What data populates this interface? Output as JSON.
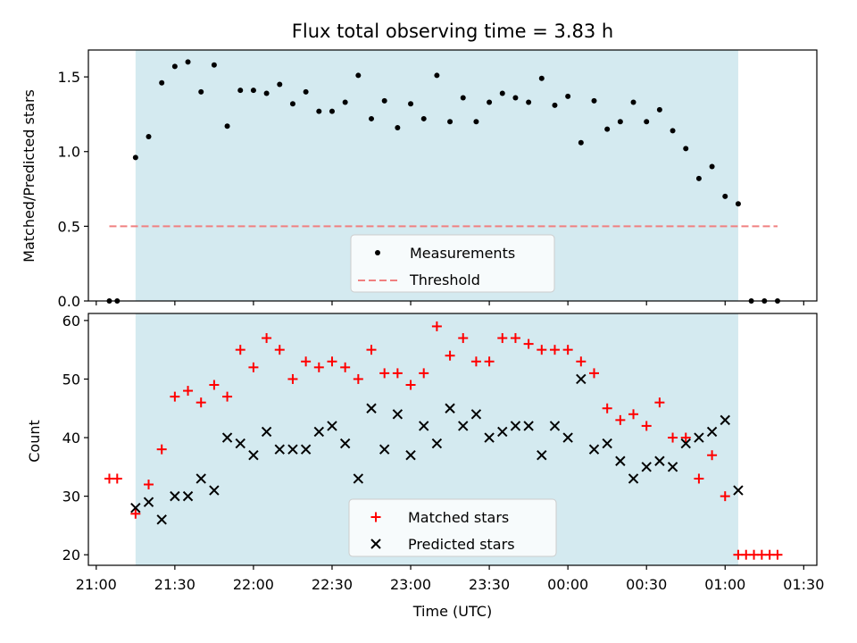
{
  "chart_data": [
    {
      "type": "scatter",
      "title": "Flux total observing time = 3.83 h",
      "xlabel": "",
      "ylabel": "Matched/Predicted stars",
      "ylim": [
        0,
        1.68
      ],
      "yticks": [
        "0.0",
        "0.5",
        "1.0",
        "1.5"
      ],
      "ytick_values": [
        0,
        0.5,
        1.0,
        1.5
      ],
      "observing_window": {
        "start": "21:15",
        "end": "01:05",
        "color": "#d4eaf0"
      },
      "threshold": {
        "name": "Threshold",
        "value": 0.5,
        "x_start": "21:05",
        "x_end": "01:20",
        "color": "#f08080"
      },
      "legend": {
        "position": "lower center",
        "entries": [
          "Measurements",
          "Threshold"
        ]
      },
      "series": [
        {
          "name": "Measurements",
          "marker": "dot",
          "color": "#000000",
          "x": [
            "21:05",
            "21:08",
            "21:15",
            "21:20",
            "21:25",
            "21:30",
            "21:35",
            "21:40",
            "21:45",
            "21:50",
            "21:55",
            "22:00",
            "22:05",
            "22:10",
            "22:15",
            "22:20",
            "22:25",
            "22:30",
            "22:35",
            "22:40",
            "22:45",
            "22:50",
            "22:55",
            "23:00",
            "23:05",
            "23:10",
            "23:15",
            "23:20",
            "23:25",
            "23:30",
            "23:35",
            "23:40",
            "23:45",
            "23:50",
            "23:55",
            "00:00",
            "00:05",
            "00:10",
            "00:15",
            "00:20",
            "00:25",
            "00:30",
            "00:35",
            "00:40",
            "00:45",
            "00:50",
            "00:55",
            "01:00",
            "01:05",
            "01:10",
            "01:15",
            "01:20"
          ],
          "y": [
            0.0,
            0.0,
            0.96,
            1.1,
            1.46,
            1.57,
            1.6,
            1.4,
            1.58,
            1.17,
            1.41,
            1.41,
            1.39,
            1.45,
            1.32,
            1.4,
            1.27,
            1.27,
            1.33,
            1.51,
            1.22,
            1.34,
            1.16,
            1.32,
            1.22,
            1.51,
            1.2,
            1.36,
            1.2,
            1.33,
            1.39,
            1.36,
            1.33,
            1.49,
            1.31,
            1.37,
            1.06,
            1.34,
            1.15,
            1.2,
            1.33,
            1.2,
            1.28,
            1.14,
            1.02,
            0.82,
            0.9,
            0.7,
            0.65,
            0.0,
            0.0,
            0.0
          ]
        }
      ]
    },
    {
      "type": "scatter",
      "title": "",
      "xlabel": "Time (UTC)",
      "ylabel": "Count",
      "ylim": [
        18.2,
        61.2
      ],
      "yticks": [
        "20",
        "30",
        "40",
        "50",
        "60"
      ],
      "ytick_values": [
        20,
        30,
        40,
        50,
        60
      ],
      "xlim": [
        "20:57",
        "01:35"
      ],
      "xticks": [
        "21:00",
        "21:30",
        "22:00",
        "22:30",
        "23:00",
        "23:30",
        "00:00",
        "00:30",
        "01:00",
        "01:30"
      ],
      "observing_window": {
        "start": "21:15",
        "end": "01:05",
        "color": "#d4eaf0"
      },
      "legend": {
        "position": "lower center",
        "entries": [
          "Matched stars",
          "Predicted stars"
        ]
      },
      "series": [
        {
          "name": "Matched stars",
          "marker": "plus",
          "color": "#ff0000",
          "x": [
            "21:05",
            "21:08",
            "21:15",
            "21:20",
            "21:25",
            "21:30",
            "21:35",
            "21:40",
            "21:45",
            "21:50",
            "21:55",
            "22:00",
            "22:05",
            "22:10",
            "22:15",
            "22:20",
            "22:25",
            "22:30",
            "22:35",
            "22:40",
            "22:45",
            "22:50",
            "22:55",
            "23:00",
            "23:05",
            "23:10",
            "23:15",
            "23:20",
            "23:25",
            "23:30",
            "23:35",
            "23:40",
            "23:45",
            "23:50",
            "23:55",
            "00:00",
            "00:05",
            "00:10",
            "00:15",
            "00:20",
            "00:25",
            "00:30",
            "00:35",
            "00:40",
            "00:45",
            "00:50",
            "00:55",
            "01:00",
            "01:05",
            "01:08",
            "01:11",
            "01:14",
            "01:17",
            "01:20"
          ],
          "y": [
            33,
            33,
            27,
            32,
            38,
            47,
            48,
            46,
            49,
            47,
            55,
            52,
            57,
            55,
            50,
            53,
            52,
            53,
            52,
            50,
            55,
            51,
            51,
            49,
            51,
            59,
            54,
            57,
            53,
            53,
            57,
            57,
            56,
            55,
            55,
            55,
            53,
            51,
            45,
            43,
            44,
            42,
            46,
            40,
            40,
            33,
            37,
            30,
            20,
            20,
            20,
            20,
            20,
            20
          ]
        },
        {
          "name": "Predicted stars",
          "marker": "x",
          "color": "#000000",
          "x": [
            "21:15",
            "21:20",
            "21:25",
            "21:30",
            "21:35",
            "21:40",
            "21:45",
            "21:50",
            "21:55",
            "22:00",
            "22:05",
            "22:10",
            "22:15",
            "22:20",
            "22:25",
            "22:30",
            "22:35",
            "22:40",
            "22:45",
            "22:50",
            "22:55",
            "23:00",
            "23:05",
            "23:10",
            "23:15",
            "23:20",
            "23:25",
            "23:30",
            "23:35",
            "23:40",
            "23:45",
            "23:50",
            "23:55",
            "00:00",
            "00:05",
            "00:10",
            "00:15",
            "00:20",
            "00:25",
            "00:30",
            "00:35",
            "00:40",
            "00:45",
            "00:50",
            "00:55",
            "01:00",
            "01:05"
          ],
          "y": [
            28,
            29,
            26,
            30,
            30,
            33,
            31,
            40,
            39,
            37,
            41,
            38,
            38,
            38,
            41,
            42,
            39,
            33,
            45,
            38,
            44,
            37,
            42,
            39,
            45,
            42,
            44,
            40,
            41,
            42,
            42,
            37,
            42,
            40,
            50,
            38,
            39,
            36,
            33,
            35,
            36,
            35,
            39,
            40,
            41,
            43,
            31
          ]
        }
      ]
    }
  ]
}
